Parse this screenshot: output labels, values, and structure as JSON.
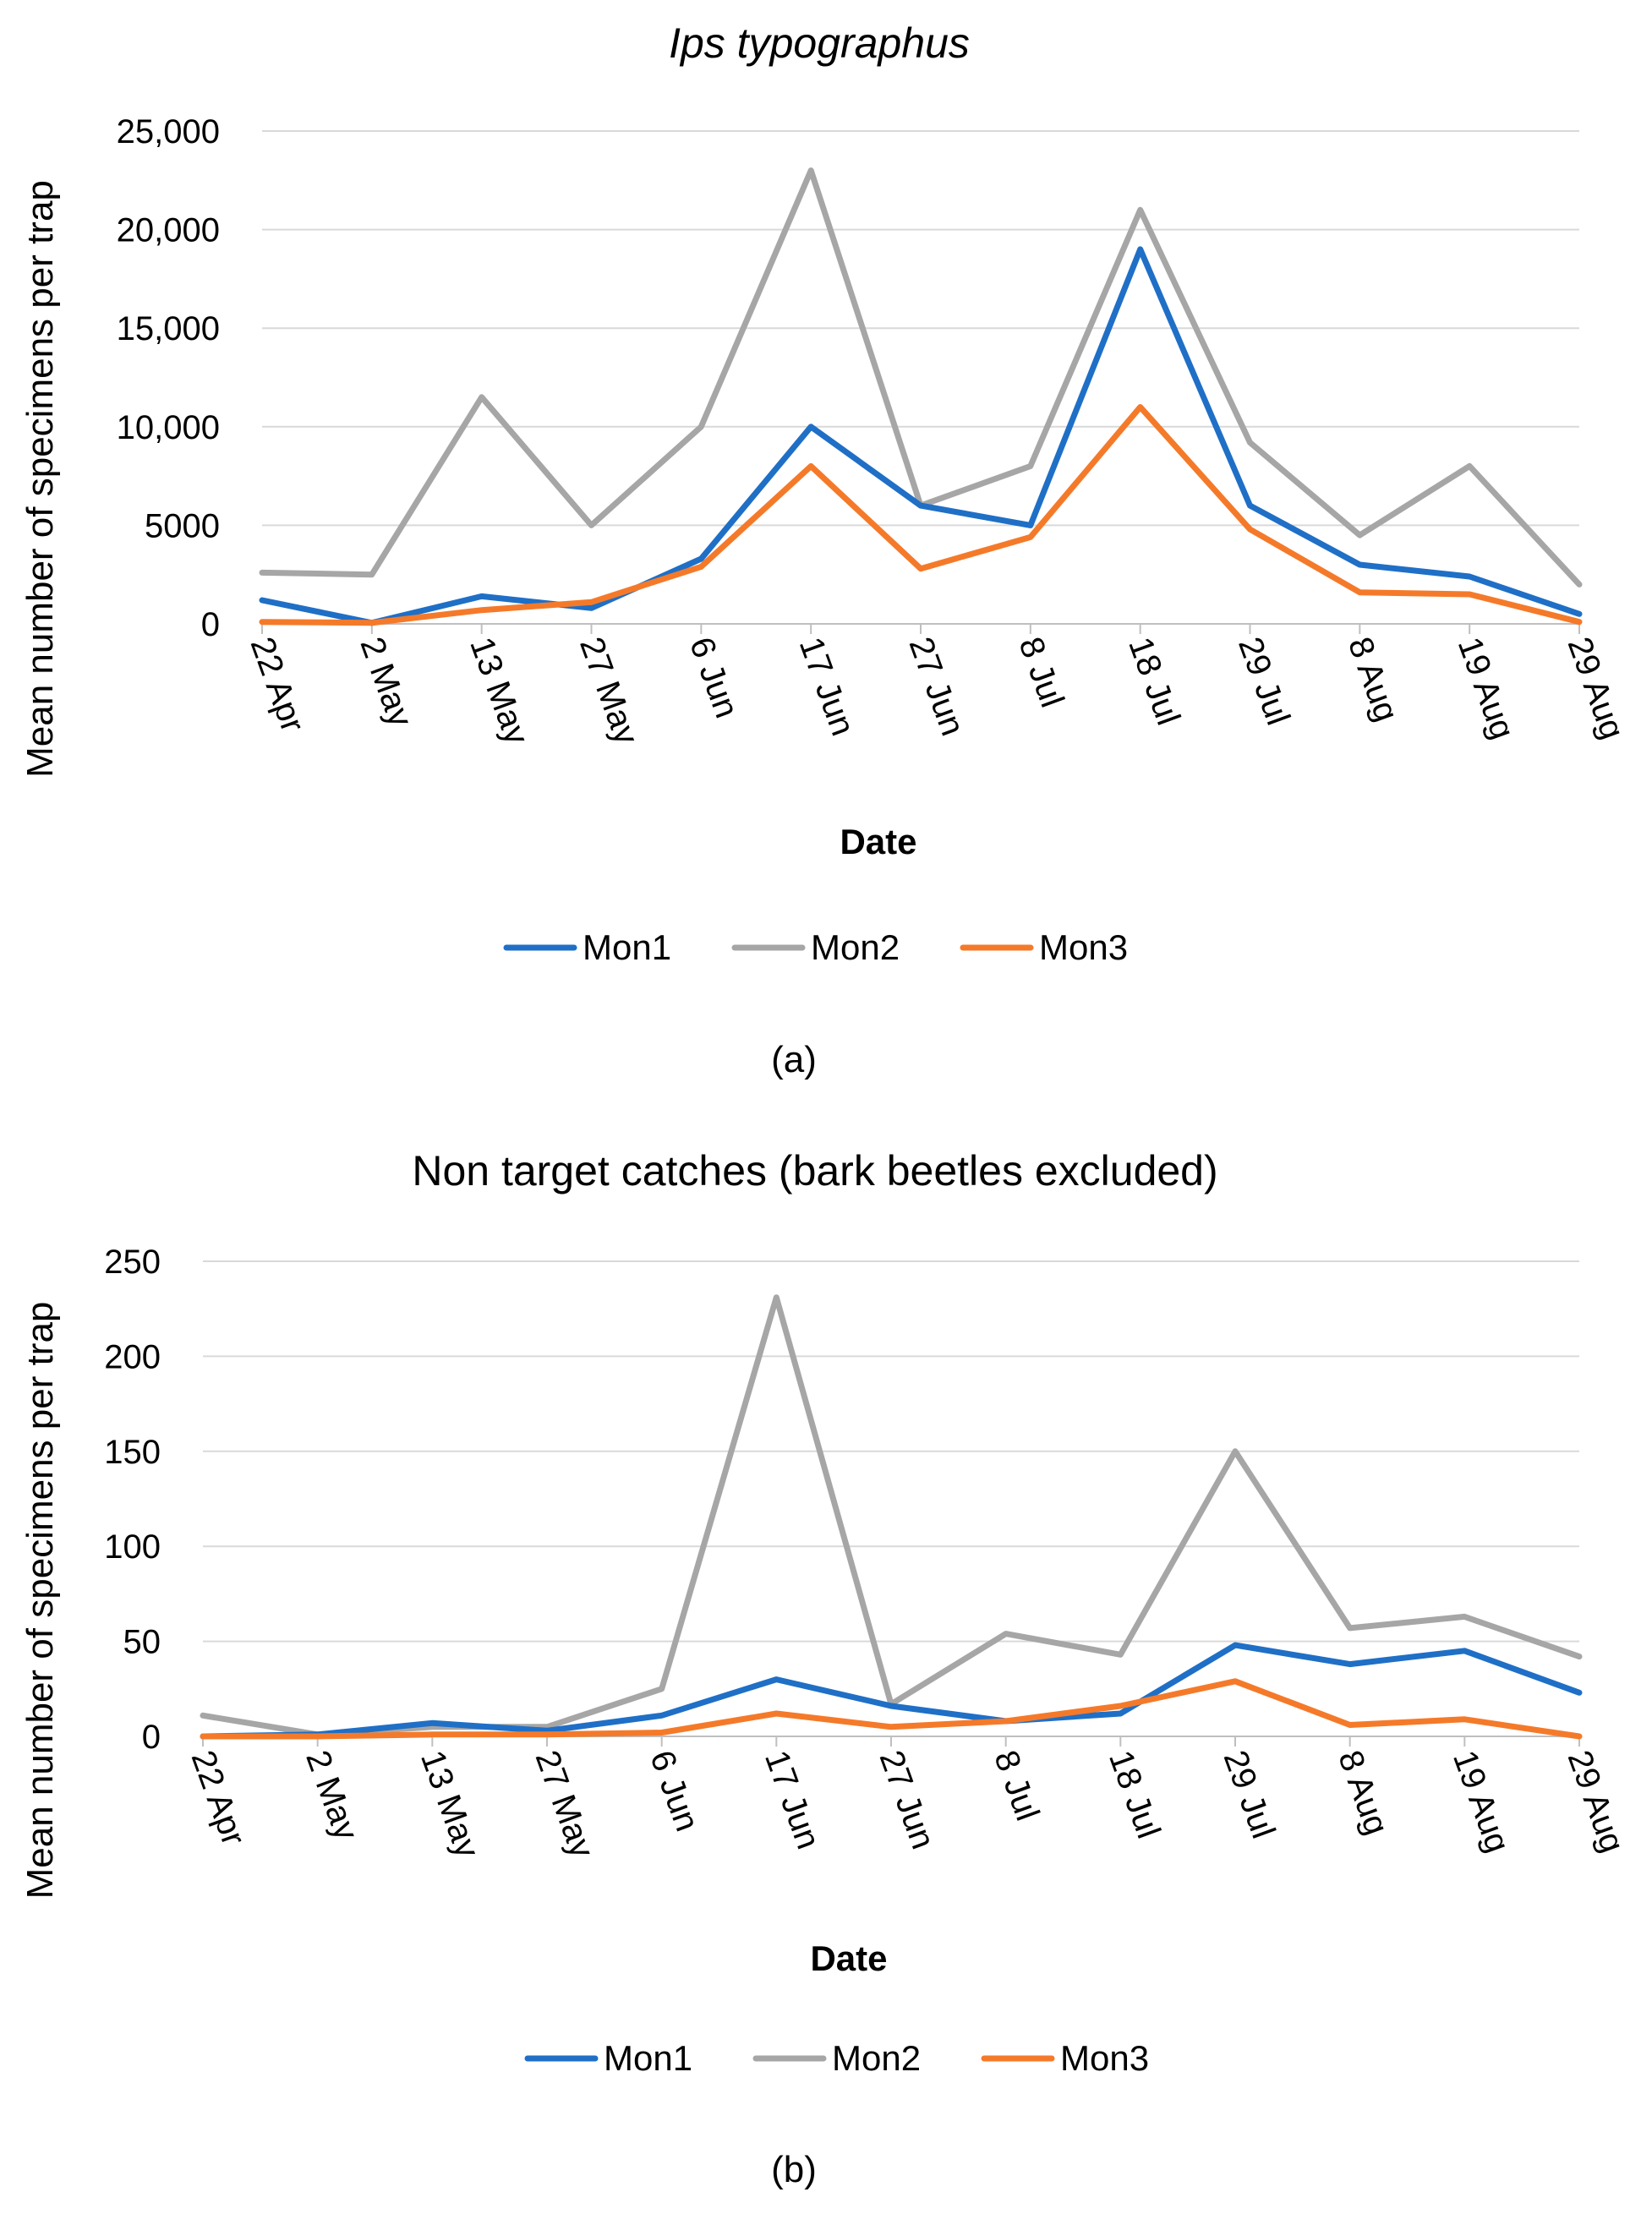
{
  "figures": [
    {
      "caption": "(a)"
    },
    {
      "caption": "(b)"
    }
  ],
  "colors": {
    "Mon1": "#1f6fc6",
    "Mon2": "#a6a6a6",
    "Mon3": "#f47a2a",
    "grid": "#d9d9d9",
    "axis": "#bfbfbf"
  },
  "chart_data": [
    {
      "type": "line",
      "title": "Ips typographus",
      "title_italic": true,
      "xlabel": "Date",
      "ylabel": "Mean number of specimens per trap",
      "categories": [
        "22 Apr",
        "2 May",
        "13 May",
        "27 May",
        "6 Jun",
        "17 Jun",
        "27 Jun",
        "8 Jul",
        "18 Jul",
        "29 Jul",
        "8 Aug",
        "19 Aug",
        "29 Aug"
      ],
      "ylim": [
        0,
        25000
      ],
      "yticks": [
        0,
        5000,
        10000,
        15000,
        20000,
        25000
      ],
      "ytick_labels": [
        "0",
        "5000",
        "10,000",
        "15,000",
        "20,000",
        "25,000"
      ],
      "grid": true,
      "legend_position": "bottom",
      "series": [
        {
          "name": "Mon1",
          "values": [
            1200,
            50,
            1400,
            800,
            3300,
            10000,
            6000,
            5000,
            19000,
            6000,
            3000,
            2400,
            500
          ]
        },
        {
          "name": "Mon2",
          "values": [
            2600,
            2500,
            11500,
            5000,
            10000,
            23000,
            6000,
            8000,
            21000,
            9200,
            4500,
            8000,
            2000
          ]
        },
        {
          "name": "Mon3",
          "values": [
            100,
            50,
            700,
            1100,
            2900,
            8000,
            2800,
            4400,
            11000,
            4800,
            1600,
            1500,
            100
          ]
        }
      ]
    },
    {
      "type": "line",
      "title": "Non target catches (bark beetles excluded)",
      "title_italic": false,
      "xlabel": "Date",
      "ylabel": "Mean number of specimens per trap",
      "categories": [
        "22 Apr",
        "2 May",
        "13 May",
        "27 May",
        "6 Jun",
        "17 Jun",
        "27 Jun",
        "8 Jul",
        "18 Jul",
        "29 Jul",
        "8 Aug",
        "19 Aug",
        "29 Aug"
      ],
      "ylim": [
        0,
        250
      ],
      "yticks": [
        0,
        50,
        100,
        150,
        200,
        250
      ],
      "ytick_labels": [
        "0",
        "50",
        "100",
        "150",
        "200",
        "250"
      ],
      "grid": true,
      "legend_position": "bottom",
      "series": [
        {
          "name": "Mon1",
          "values": [
            0,
            1,
            7,
            3,
            11,
            30,
            16,
            8,
            12,
            48,
            38,
            45,
            23
          ]
        },
        {
          "name": "Mon2",
          "values": [
            11,
            1,
            5,
            5,
            25,
            231,
            17,
            54,
            43,
            150,
            57,
            63,
            42
          ]
        },
        {
          "name": "Mon3",
          "values": [
            0,
            0,
            1,
            1,
            2,
            12,
            5,
            8,
            16,
            29,
            6,
            9,
            0
          ]
        }
      ]
    }
  ]
}
